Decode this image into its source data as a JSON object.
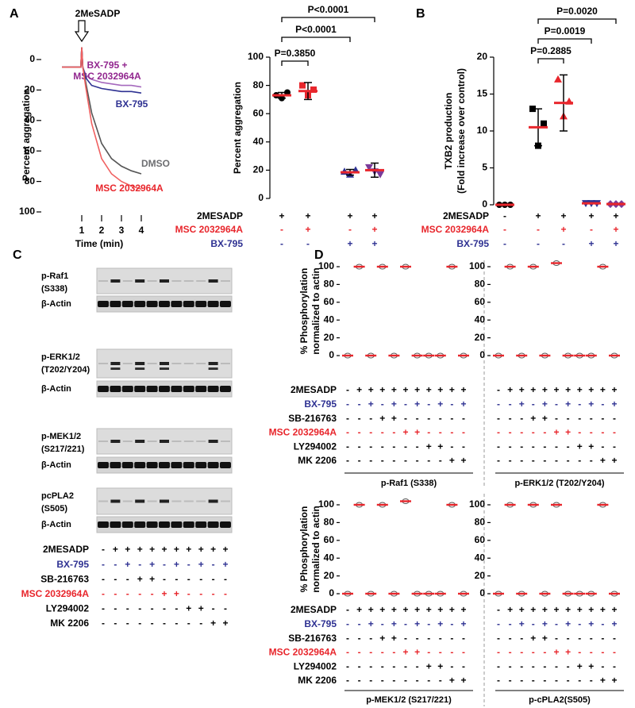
{
  "panel_a": {
    "label": "A",
    "traces": {
      "agonist": "2MeSADP",
      "ylabel": "Percent aggregation",
      "xlabel": "Time (min)",
      "ylim": [
        0,
        100
      ],
      "yticks": [
        0,
        20,
        40,
        60,
        80,
        100
      ],
      "xlim": [
        0,
        4.4
      ],
      "xticks": [
        1,
        2,
        3,
        4
      ],
      "x": [
        0,
        0.5,
        0.95,
        1,
        1.05,
        1.2,
        1.5,
        2,
        2.5,
        3,
        3.5,
        4
      ],
      "series": [
        {
          "name": [
            "BX-795 +",
            "MSC 2032964A"
          ],
          "color": "#a569bd",
          "label_color": "#92278f",
          "values": [
            5,
            5,
            5,
            -8,
            5,
            10,
            13,
            15,
            16,
            17,
            17,
            18
          ]
        },
        {
          "name": [
            "BX-795"
          ],
          "color": "#2e3192",
          "label_color": "#2e3192",
          "values": [
            5,
            5,
            5,
            -8,
            5,
            12,
            17,
            19,
            20,
            21,
            21,
            22
          ]
        },
        {
          "name": [
            "DMSO"
          ],
          "color": "#555555",
          "label_color": "#6d6e71",
          "values": [
            5,
            5,
            5,
            -8,
            5,
            15,
            35,
            55,
            65,
            70,
            73,
            75
          ]
        },
        {
          "name": [
            "MSC 2032964A"
          ],
          "color": "#f06060",
          "label_color": "#e8262c",
          "values": [
            5,
            5,
            5,
            -8,
            5,
            18,
            42,
            65,
            75,
            80,
            83,
            85
          ]
        }
      ]
    },
    "scatter": {
      "ylabel": [
        "Percent aggregation"
      ],
      "ylim": [
        0,
        100
      ],
      "yticks": [
        0,
        20,
        40,
        60,
        80,
        100
      ],
      "groups": [
        {
          "marker": "circle",
          "color": "#000000",
          "points": [
            73,
            71,
            75
          ],
          "mean": 73,
          "sd": 2
        },
        {
          "marker": "square",
          "color": "#e8262c",
          "points": [
            80,
            73,
            77
          ],
          "mean": 76,
          "sd": 6
        },
        {
          "marker": "triangle",
          "color": "#2e3192",
          "points": [
            19,
            17,
            20
          ],
          "mean": 18.5,
          "sd": 2
        },
        {
          "marker": "triangle-down",
          "color": "#7a3b9a",
          "points": [
            22,
            19,
            17
          ],
          "mean": 20,
          "sd": 5
        }
      ],
      "comparisons": [
        {
          "label": "P<0.0001"
        },
        {
          "label": "P<0.0001"
        },
        {
          "label": "P=0.3850"
        }
      ],
      "conditions": [
        {
          "label": "2MESADP",
          "color": "#000000",
          "symbols": [
            "+",
            "+",
            "+",
            "+"
          ]
        },
        {
          "label": "MSC 2032964A",
          "color": "#e8262c",
          "symbols": [
            "-",
            "+",
            "-",
            "+"
          ]
        },
        {
          "label": "BX-795",
          "color": "#2e3192",
          "symbols": [
            "-",
            "-",
            "+",
            "+"
          ]
        }
      ]
    }
  },
  "panel_b": {
    "label": "B",
    "ylabel": [
      "TXB2 production",
      "(Fold increase over control)"
    ],
    "ylim": [
      0,
      20
    ],
    "yticks": [
      0,
      5,
      10,
      15,
      20
    ],
    "groups": [
      {
        "marker": "circle",
        "color": "#000000",
        "points": [
          0,
          0,
          0
        ],
        "mean": 0,
        "sd": 0
      },
      {
        "marker": "square",
        "color": "#000000",
        "points": [
          13,
          8,
          11
        ],
        "mean": 10.5,
        "sd": 2.5
      },
      {
        "marker": "triangle",
        "color": "#e8262c",
        "points": [
          17,
          12,
          14
        ],
        "mean": 13.8,
        "sd": 3.8
      },
      {
        "marker": "triangle-down",
        "color": "#2e3192",
        "points": [
          0.2,
          0.2,
          0.2
        ],
        "mean": 0.2,
        "sd": 0
      },
      {
        "marker": "diamond",
        "color": "#7a3b9a",
        "points": [
          0.1,
          0.1,
          0.1
        ],
        "mean": 0.1,
        "sd": 0
      }
    ],
    "comparisons": [
      {
        "label": "P=0.0020"
      },
      {
        "label": "P=0.0019"
      },
      {
        "label": "P=0.2885"
      }
    ],
    "conditions": [
      {
        "label": "2MESADP",
        "color": "#000000",
        "symbols": [
          "-",
          "+",
          "+",
          "+",
          "+"
        ]
      },
      {
        "label": "MSC 2032964A",
        "color": "#e8262c",
        "symbols": [
          "-",
          "-",
          "+",
          "-",
          "+"
        ]
      },
      {
        "label": "BX-795",
        "color": "#2e3192",
        "symbols": [
          "-",
          "-",
          "-",
          "+",
          "+"
        ]
      }
    ]
  },
  "lane_conditions": [
    {
      "label": "2MESADP",
      "color": "#000000",
      "symbols": [
        "-",
        "+",
        "+",
        "+",
        "+",
        "+",
        "+",
        "+",
        "+",
        "+",
        "+"
      ]
    },
    {
      "label": "BX-795",
      "color": "#2e3192",
      "symbols": [
        "-",
        "-",
        "+",
        "-",
        "+",
        "-",
        "+",
        "-",
        "+",
        "-",
        "+"
      ]
    },
    {
      "label": "SB-216763",
      "color": "#000000",
      "symbols": [
        "-",
        "-",
        "-",
        "+",
        "+",
        "-",
        "-",
        "-",
        "-",
        "-",
        "-"
      ]
    },
    {
      "label": "MSC 2032964A",
      "color": "#e8262c",
      "symbols": [
        "-",
        "-",
        "-",
        "-",
        "-",
        "+",
        "+",
        "-",
        "-",
        "-",
        "-"
      ]
    },
    {
      "label": "LY294002",
      "color": "#000000",
      "symbols": [
        "-",
        "-",
        "-",
        "-",
        "-",
        "-",
        "-",
        "+",
        "+",
        "-",
        "-"
      ]
    },
    {
      "label": "MK 2206",
      "color": "#000000",
      "symbols": [
        "-",
        "-",
        "-",
        "-",
        "-",
        "-",
        "-",
        "-",
        "-",
        "+",
        "+"
      ]
    }
  ],
  "panel_c": {
    "label": "C",
    "blots": [
      {
        "target": [
          "p-Raf1",
          "(S338)"
        ],
        "loading": "β-Actin"
      },
      {
        "target": [
          "p-ERK1/2",
          "(T202/Y204)"
        ],
        "loading": "β-Actin"
      },
      {
        "target": [
          "p-MEK1/2",
          "(S217/221)"
        ],
        "loading": "β-Actin"
      },
      {
        "target": [
          "pcPLA2",
          "(S505)"
        ],
        "loading": "β-Actin"
      }
    ]
  },
  "panel_d": {
    "label": "D",
    "ylabel": [
      "% Phosphorylation",
      "normalized to actin"
    ],
    "ylim": [
      0,
      110
    ],
    "yticks": [
      0,
      20,
      40,
      60,
      80,
      100
    ],
    "plots": [
      {
        "caption": "p-Raf1 (S338)",
        "values": [
          0,
          100,
          0,
          100,
          0,
          100,
          0,
          0,
          0,
          100,
          0
        ]
      },
      {
        "caption": "p-ERK1/2 (T202/Y204)",
        "values": [
          0,
          100,
          0,
          100,
          0,
          104,
          0,
          0,
          0,
          100,
          0
        ]
      },
      {
        "caption": "p-MEK1/2 (S217/221)",
        "values": [
          0,
          100,
          0,
          100,
          0,
          104,
          0,
          0,
          0,
          100,
          0
        ]
      },
      {
        "caption": "p-cPLA2(S505)",
        "values": [
          0,
          100,
          0,
          100,
          0,
          100,
          0,
          0,
          0,
          100,
          0
        ]
      }
    ]
  }
}
